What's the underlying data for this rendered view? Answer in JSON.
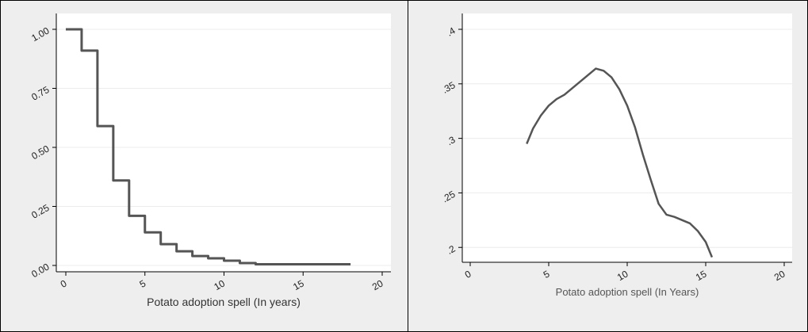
{
  "chart_data": [
    {
      "type": "line",
      "step": true,
      "title": "",
      "xlabel": "Potato adoption spell (In years)",
      "ylabel": "",
      "xlim": [
        0,
        20
      ],
      "ylim": [
        0,
        1
      ],
      "xticks": [
        "0",
        "5",
        "10",
        "15",
        "20"
      ],
      "yticks": [
        "0.00",
        "0.25",
        "0.50",
        "0.75",
        "1.00"
      ],
      "grid": "horizontal",
      "series": [
        {
          "x": [
            0,
            1,
            2,
            3,
            4,
            5,
            6,
            7,
            8,
            9,
            10,
            11,
            12,
            13,
            14,
            15,
            16,
            17,
            18
          ],
          "y": [
            1.0,
            0.91,
            0.59,
            0.36,
            0.21,
            0.14,
            0.09,
            0.06,
            0.04,
            0.03,
            0.02,
            0.01,
            0.005,
            0.005,
            0.005,
            0.005,
            0.005,
            0.005,
            0.005
          ]
        }
      ]
    },
    {
      "type": "line",
      "title": "",
      "xlabel": "Potato adoption spell (In Years)",
      "ylabel": "",
      "xlim": [
        0,
        20
      ],
      "ylim": [
        0.19,
        0.4
      ],
      "xticks": [
        "0",
        "5",
        "10",
        "15",
        "20"
      ],
      "yticks": [
        ".2",
        ".25",
        ".3",
        ".35",
        ".4"
      ],
      "grid": "horizontal",
      "series": [
        {
          "x": [
            3.6,
            4.0,
            4.5,
            5.0,
            5.5,
            6.0,
            6.5,
            7.0,
            7.5,
            8.0,
            8.5,
            9.0,
            9.5,
            10.0,
            10.5,
            11.0,
            11.5,
            12.0,
            12.5,
            13.0,
            13.5,
            14.0,
            14.5,
            15.0,
            15.4
          ],
          "y": [
            0.295,
            0.309,
            0.321,
            0.33,
            0.336,
            0.34,
            0.346,
            0.352,
            0.358,
            0.364,
            0.362,
            0.356,
            0.345,
            0.33,
            0.31,
            0.285,
            0.262,
            0.24,
            0.23,
            0.228,
            0.225,
            0.222,
            0.215,
            0.205,
            0.191
          ]
        }
      ]
    }
  ]
}
